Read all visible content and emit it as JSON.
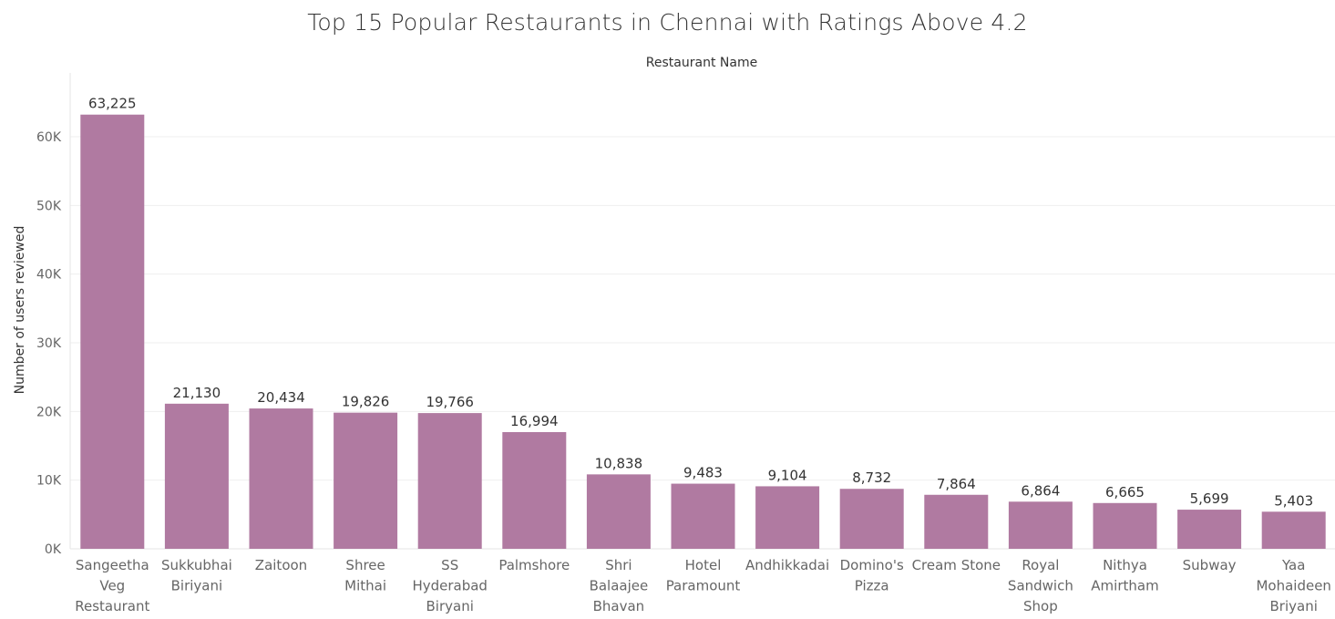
{
  "chart_data": {
    "type": "bar",
    "title": "Top 15 Popular Restaurants in Chennai with Ratings Above 4.2",
    "xlabel": "Restaurant Name",
    "ylabel": "Number of users reviewed",
    "ylim": [
      0,
      68000
    ],
    "yticks": [
      0,
      10000,
      20000,
      30000,
      40000,
      50000,
      60000
    ],
    "ytick_labels": [
      "0K",
      "10K",
      "20K",
      "30K",
      "40K",
      "50K",
      "60K"
    ],
    "grid": true,
    "bar_color": "#b07aa1",
    "categories": [
      [
        "Sangeetha",
        "Veg",
        "Restaurant"
      ],
      [
        "Sukkubhai",
        "Biriyani"
      ],
      [
        "Zaitoon"
      ],
      [
        "Shree",
        "Mithai"
      ],
      [
        "SS",
        "Hyderabad",
        "Biryani"
      ],
      [
        "Palmshore"
      ],
      [
        "Shri",
        "Balaajee",
        "Bhavan"
      ],
      [
        "Hotel",
        "Paramount"
      ],
      [
        "Andhikkadai"
      ],
      [
        "Domino's",
        "Pizza"
      ],
      [
        "Cream Stone"
      ],
      [
        "Royal",
        "Sandwich",
        "Shop"
      ],
      [
        "Nithya",
        "Amirtham"
      ],
      [
        "Subway"
      ],
      [
        "Yaa",
        "Mohaideen",
        "Briyani"
      ]
    ],
    "values": [
      63225,
      21130,
      20434,
      19826,
      19766,
      16994,
      10838,
      9483,
      9104,
      8732,
      7864,
      6864,
      6665,
      5699,
      5403
    ],
    "value_labels": [
      "63,225",
      "21,130",
      "20,434",
      "19,826",
      "19,766",
      "16,994",
      "10,838",
      "9,483",
      "9,104",
      "8,732",
      "7,864",
      "6,864",
      "6,665",
      "5,699",
      "5,403"
    ]
  }
}
